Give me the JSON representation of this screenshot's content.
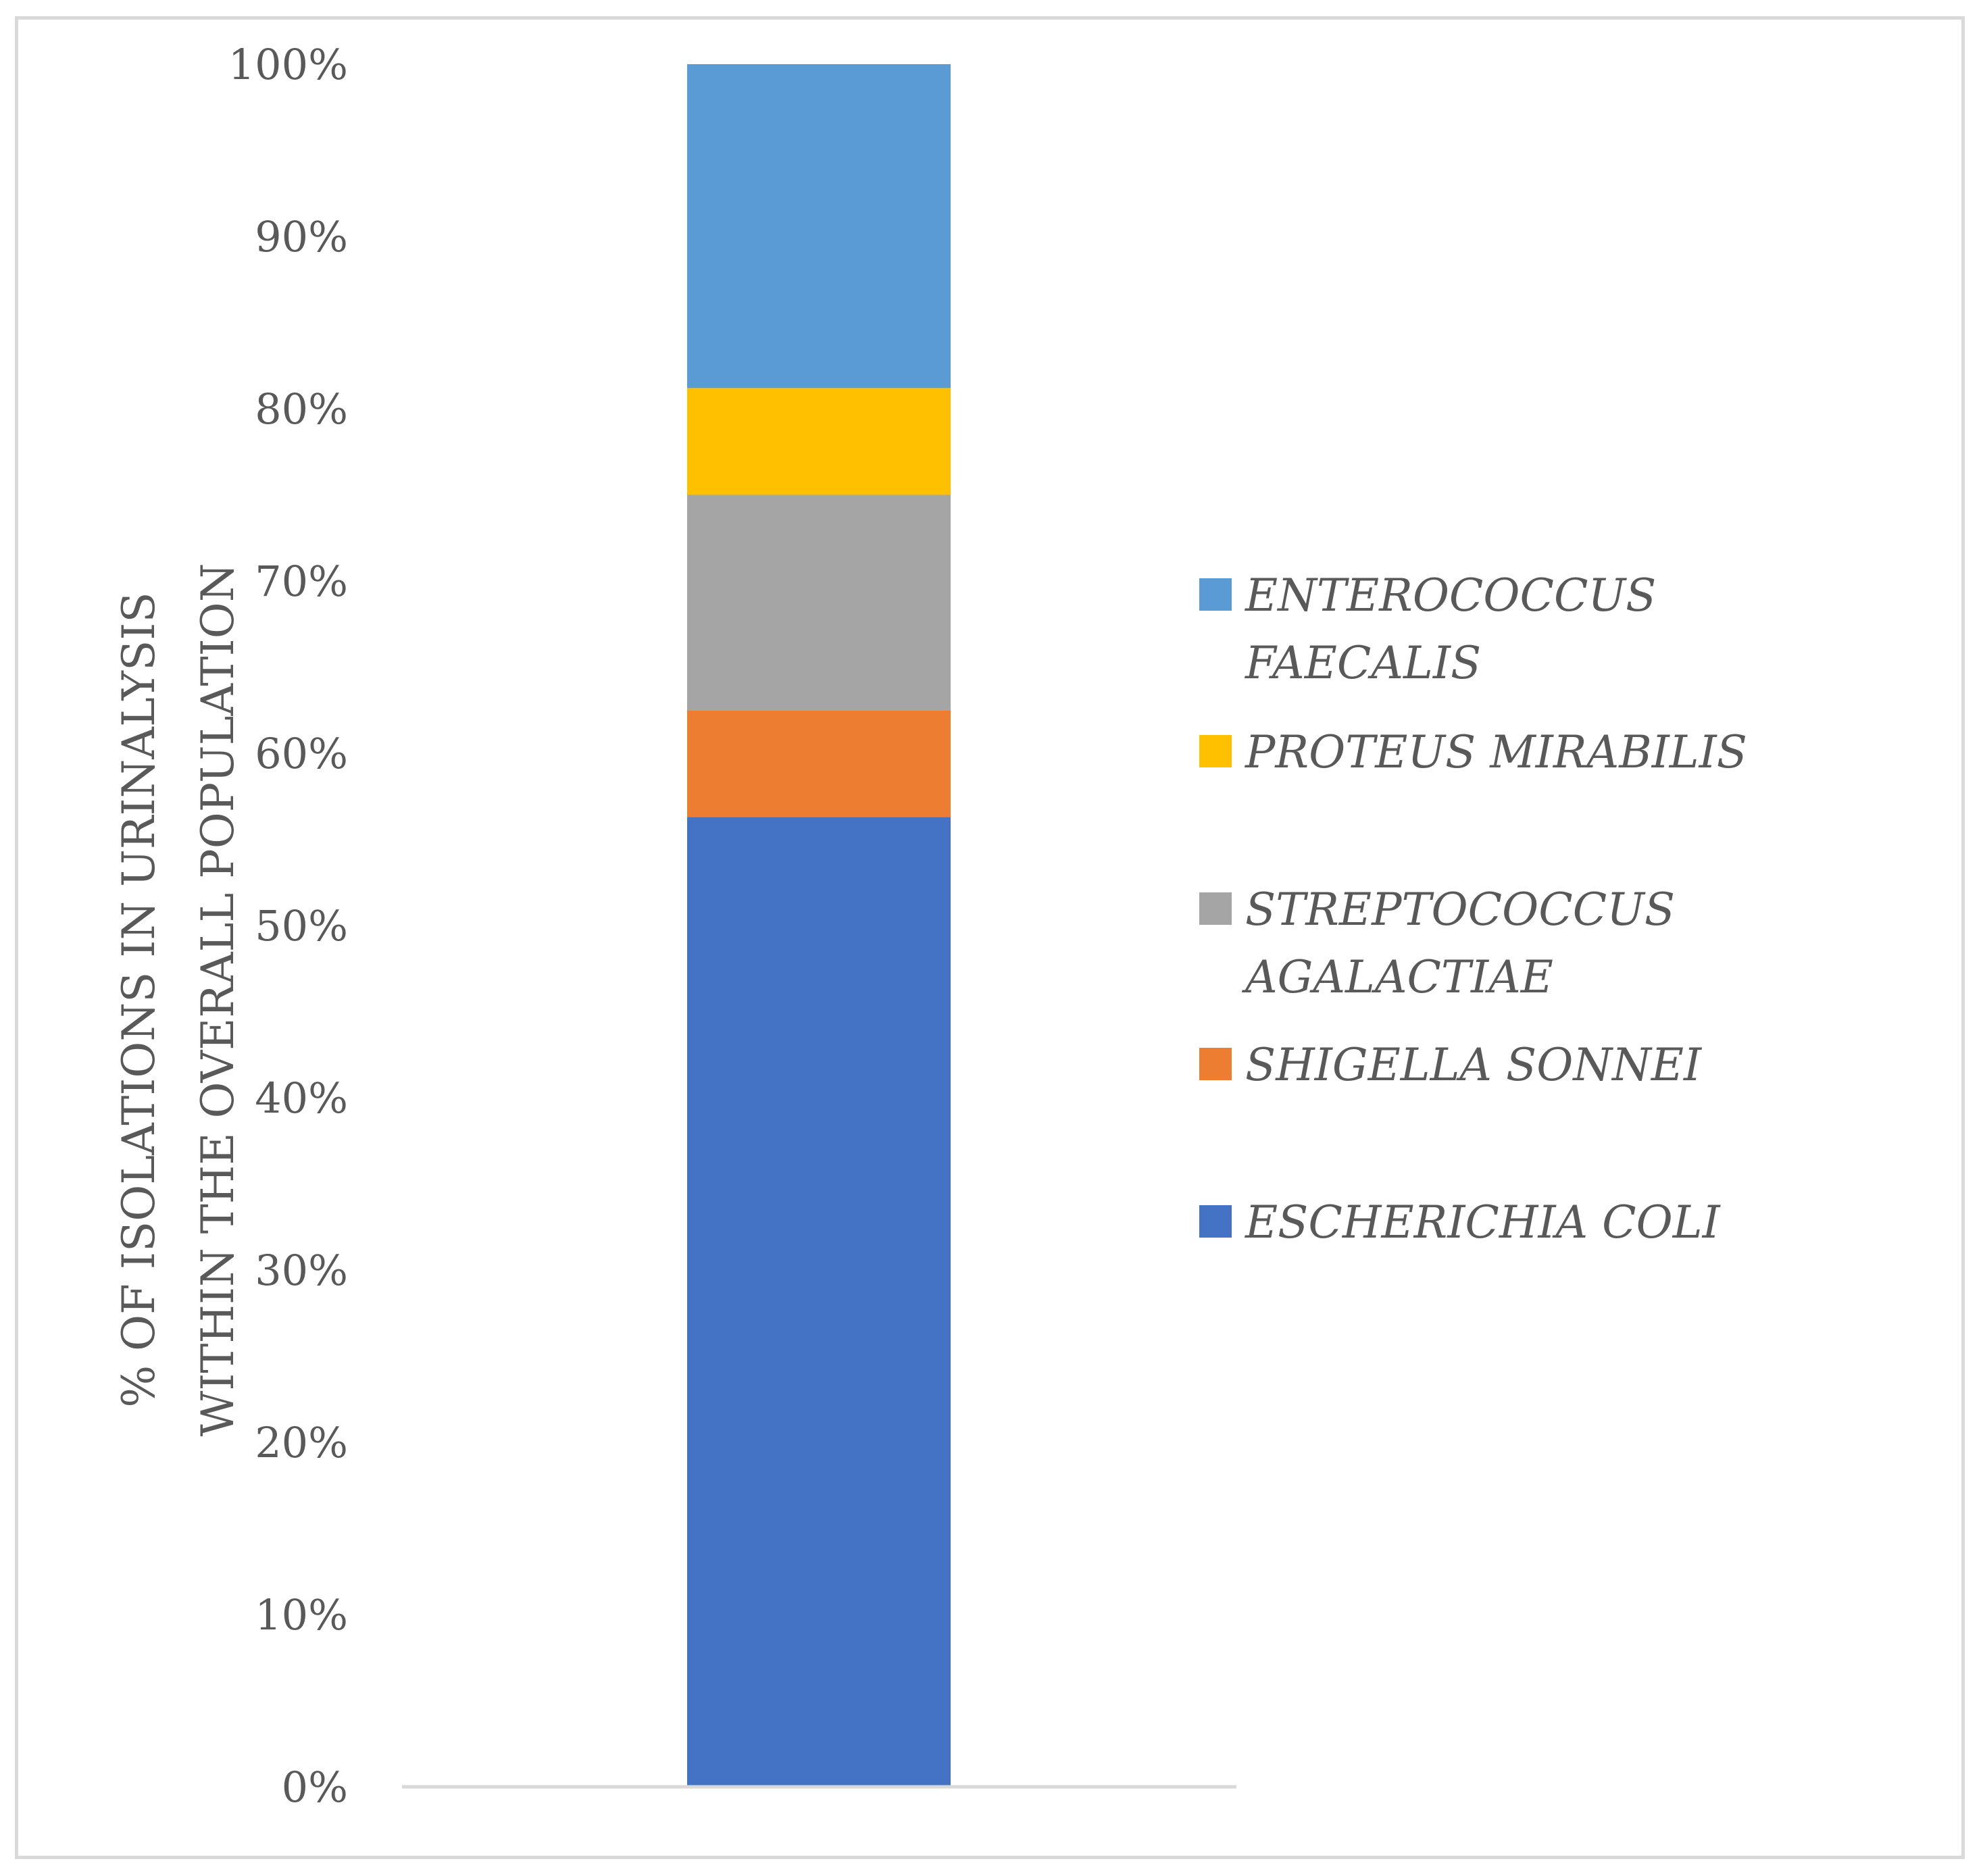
{
  "chart_data": {
    "type": "bar",
    "stacked": true,
    "categories": [
      ""
    ],
    "yaxis": {
      "label_lines": [
        "% OF ISOLATIONS IN URINALYSIS",
        "WITHIN THE OVERALL POPULATION"
      ],
      "ticks": [
        "0%",
        "10%",
        "20%",
        "30%",
        "40%",
        "50%",
        "60%",
        "70%",
        "80%",
        "90%",
        "100%"
      ],
      "range": [
        0,
        100
      ]
    },
    "grid": false,
    "legend_position": "right",
    "series": [
      {
        "name": "ESCHERICHIA COLI",
        "legend_lines": [
          "ESCHERICHIA COLI"
        ],
        "values": [
          56.3
        ],
        "color": "#4472C4"
      },
      {
        "name": "SHIGELLA SONNEI",
        "legend_lines": [
          "SHIGELLA SONNEI"
        ],
        "values": [
          6.2
        ],
        "color": "#ED7D31"
      },
      {
        "name": "STREPTOCOCCUS AGALACTIAE",
        "legend_lines": [
          "STREPTOCOCCUS",
          "AGALACTIAE"
        ],
        "values": [
          12.5
        ],
        "color": "#A5A5A5"
      },
      {
        "name": "PROTEUS MIRABILIS",
        "legend_lines": [
          "PROTEUS MIRABILIS"
        ],
        "values": [
          6.2
        ],
        "color": "#FFC000"
      },
      {
        "name": "ENTEROCOCCUS FAECALIS",
        "legend_lines": [
          "ENTEROCOCCUS",
          "FAECALIS"
        ],
        "values": [
          18.8
        ],
        "color": "#5B9BD5"
      }
    ]
  }
}
